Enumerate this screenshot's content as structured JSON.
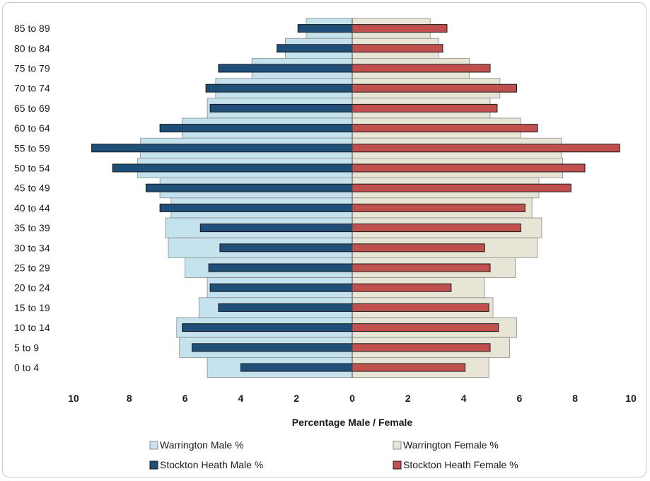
{
  "chart_data": {
    "type": "bar",
    "orientation": "horizontal-pyramid",
    "categories": [
      "85 to 89",
      "80 to 84",
      "75 to 79",
      "70 to 74",
      "65 to 69",
      "60 to 64",
      "55 to 59",
      "50 to 54",
      "45 to 49",
      "40 to 44",
      "35 to 39",
      "30 to 34",
      "25 to 29",
      "20 to 24",
      "15 to 19",
      "10 to 14",
      "5 to 9",
      "0 to 4"
    ],
    "series": [
      {
        "name": "Warrington Male %",
        "side": "left",
        "color": "#c5e3ee",
        "values": [
          1.65,
          2.4,
          3.6,
          4.9,
          5.2,
          6.1,
          7.6,
          7.7,
          6.9,
          6.5,
          6.7,
          6.6,
          6.0,
          5.2,
          5.5,
          6.3,
          6.2,
          5.2
        ]
      },
      {
        "name": "Warrington Female %",
        "side": "right",
        "color": "#e8e4d6",
        "values": [
          2.8,
          3.1,
          4.2,
          5.3,
          4.95,
          6.05,
          7.5,
          7.55,
          6.7,
          6.45,
          6.8,
          6.65,
          5.85,
          4.75,
          5.05,
          5.9,
          5.65,
          4.9
        ]
      },
      {
        "name": "Stockton Heath Male %",
        "side": "left",
        "color": "#1f4e79",
        "values": [
          1.95,
          2.7,
          4.8,
          5.25,
          5.1,
          6.9,
          9.35,
          8.6,
          7.4,
          6.9,
          5.45,
          4.75,
          5.15,
          5.1,
          4.8,
          6.1,
          5.75,
          4.0
        ]
      },
      {
        "name": "Stockton Heath Female %",
        "side": "right",
        "color": "#c0504d",
        "values": [
          3.4,
          3.25,
          4.95,
          5.9,
          5.2,
          6.65,
          9.6,
          8.35,
          7.85,
          6.2,
          6.05,
          4.75,
          4.95,
          3.55,
          4.9,
          5.25,
          4.95,
          4.05
        ]
      }
    ],
    "xlabel": "Percentage Male / Female",
    "ylabel": "",
    "xlim": [
      -10,
      10
    ],
    "xticks": [
      -10,
      -8,
      -6,
      -4,
      -2,
      0,
      2,
      4,
      6,
      8,
      10
    ],
    "xtick_labels": [
      "10",
      "8",
      "6",
      "4",
      "2",
      "0",
      "2",
      "4",
      "6",
      "8",
      "10"
    ],
    "grid": false,
    "legend": "bottom"
  }
}
